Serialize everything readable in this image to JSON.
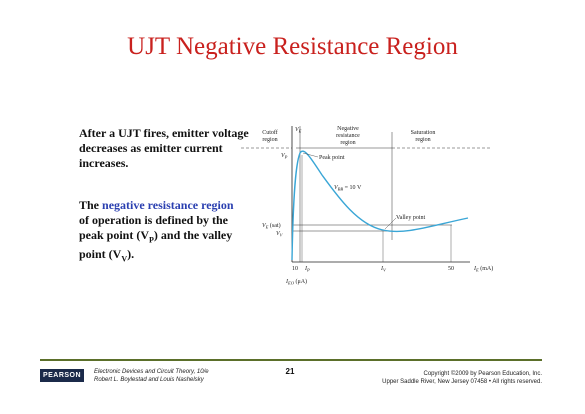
{
  "slide": {
    "title": "UJT Negative Resistance Region",
    "paragraph1": "After a UJT fires, emitter voltage decreases as emitter current increases.",
    "paragraph2": {
      "pre": "The ",
      "highlight": "negative resistance region",
      "mid": " of operation is defined by the peak point (V",
      "sub_p": "P",
      "mid2": ") and the valley point (V",
      "sub_v": "V",
      "post": ")."
    }
  },
  "figure": {
    "region_cutoff": [
      "Cutoff",
      "region"
    ],
    "region_negative": [
      "Negative",
      "resistance",
      "region"
    ],
    "region_saturation": [
      "Saturation",
      "region"
    ],
    "y_axis": "V",
    "y_axis_sub": "E",
    "vp_label": "V",
    "vp_sub": "P",
    "peak_point": "Peak point",
    "vbb_label": "V",
    "vbb_sub": "BB",
    "vbb_value": " = 10 V",
    "valley_point": "Valley point",
    "vesat_label": "V",
    "vesat_sub": "E",
    "vesat_suffix": " (sat)",
    "vv_label": "V",
    "vv_sub": "V",
    "tick_10": "10",
    "tick_ip": "I",
    "tick_ip_sub": "P",
    "tick_iv": "I",
    "tick_iv_sub": "V",
    "tick_50": "50",
    "x_axis": "I",
    "x_axis_sub": "E",
    "x_axis_unit": " (mA)",
    "ieo_label": "I",
    "ieo_sub": "EO",
    "ieo_unit": " (μA)",
    "curve_color": "#3aa6d6"
  },
  "footer": {
    "logo": "PEARSON",
    "book_title": "Electronic Devices and Circuit Theory, 10/e",
    "authors": "Robert L. Boylestad and Louis Nashelsky",
    "page_number": "21",
    "copyright_line1": "Copyright ©2009 by Pearson Education, Inc.",
    "copyright_line2": "Upper Saddle River, New Jersey 07458 • All rights reserved."
  }
}
